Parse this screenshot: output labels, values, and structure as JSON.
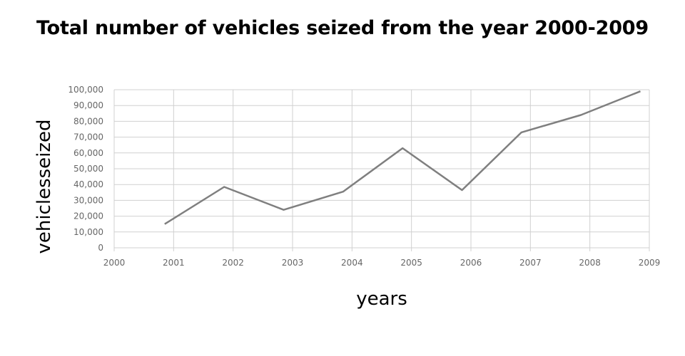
{
  "chart_data": {
    "type": "line",
    "title": "Total number of vehicles seized from the year 2000-2009",
    "xlabel": "years",
    "ylabel": "vehiclesseized",
    "categories": [
      "2000",
      "2001",
      "2002",
      "2003",
      "2004",
      "2005",
      "2006",
      "2007",
      "2008",
      "2009"
    ],
    "series": [
      {
        "x": [
          "2001",
          "2002",
          "2003",
          "2004",
          "2005",
          "2006",
          "2007",
          "2008",
          "2009"
        ],
        "values": [
          15000,
          38500,
          24000,
          35500,
          63000,
          36500,
          73000,
          84000,
          99000
        ]
      }
    ],
    "ylim": [
      0,
      100000
    ],
    "yticks": [
      "0",
      "10,000",
      "20,000",
      "30,000",
      "40,000",
      "50,000",
      "60,000",
      "70,000",
      "80,000",
      "90,000",
      "100,000"
    ],
    "grid": true,
    "legend": "none",
    "colors": {
      "line": "#7f7f7f",
      "grid": "#d0d0d0",
      "tick_text": "#666666"
    }
  }
}
